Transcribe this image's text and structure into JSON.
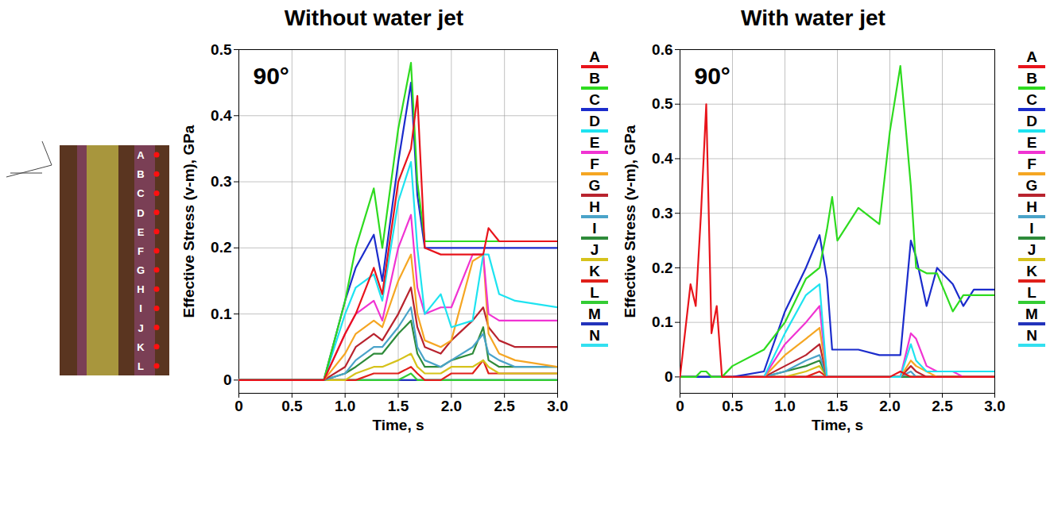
{
  "specimen": {
    "points": [
      "A",
      "B",
      "C",
      "D",
      "E",
      "F",
      "G",
      "H",
      "I",
      "J",
      "K",
      "L"
    ]
  },
  "chart_data": [
    {
      "type": "line",
      "title": "Without water jet",
      "annotation": "90°",
      "x_label": "Time, s",
      "y_label": "Effective Stress (v-m), GPa",
      "x": [
        0,
        0.8,
        1.0,
        1.1,
        1.27,
        1.35,
        1.5,
        1.62,
        1.68,
        1.75,
        1.9,
        2.0,
        2.2,
        2.3,
        2.35,
        2.45,
        2.6,
        3.0
      ],
      "xlim": [
        0,
        3
      ],
      "xticks": [
        0,
        0.5,
        {
          "value": 1,
          "label": "1.0"
        },
        1.5,
        {
          "value": 2,
          "label": "2.0"
        },
        2.5,
        {
          "value": 3,
          "label": "3.0"
        }
      ],
      "ylim": [
        -0.02,
        0.5
      ],
      "yticks": [
        0,
        0.1,
        0.2,
        0.3,
        0.4,
        0.5
      ],
      "grid": true,
      "legend": "right",
      "series": [
        {
          "name": "A",
          "color": "#e8141b",
          "values": [
            0,
            0,
            0.07,
            0.1,
            0.17,
            0.13,
            0.3,
            0.35,
            0.43,
            0.2,
            0.19,
            0.19,
            0.19,
            0.19,
            0.23,
            0.21,
            0.21,
            0.21
          ]
        },
        {
          "name": "B",
          "color": "#2edb1f",
          "values": [
            0,
            0,
            0.12,
            0.2,
            0.29,
            0.2,
            0.38,
            0.48,
            0.3,
            0.21,
            0.21,
            0.21,
            0.21,
            0.21,
            0.21,
            0.21,
            0.21,
            0.21
          ]
        },
        {
          "name": "C",
          "color": "#1b2ccc",
          "values": [
            0,
            0,
            0.12,
            0.17,
            0.22,
            0.15,
            0.33,
            0.45,
            0.28,
            0.2,
            0.2,
            0.2,
            0.2,
            0.2,
            0.2,
            0.2,
            0.2,
            0.2
          ]
        },
        {
          "name": "D",
          "color": "#1ee3f0",
          "values": [
            0,
            0,
            0.1,
            0.14,
            0.16,
            0.12,
            0.27,
            0.33,
            0.2,
            0.1,
            0.13,
            0.08,
            0.09,
            0.19,
            0.19,
            0.13,
            0.12,
            0.11
          ]
        },
        {
          "name": "E",
          "color": "#f033d2",
          "values": [
            0,
            0,
            0.07,
            0.1,
            0.12,
            0.09,
            0.2,
            0.25,
            0.14,
            0.1,
            0.11,
            0.11,
            0.19,
            0.19,
            0.1,
            0.09,
            0.09,
            0.09
          ]
        },
        {
          "name": "F",
          "color": "#f5a623",
          "values": [
            0,
            0,
            0.04,
            0.07,
            0.09,
            0.08,
            0.15,
            0.19,
            0.1,
            0.06,
            0.05,
            0.06,
            0.18,
            0.19,
            0.07,
            0.04,
            0.03,
            0.02
          ]
        },
        {
          "name": "G",
          "color": "#b8232e",
          "values": [
            0,
            0,
            0.02,
            0.05,
            0.07,
            0.06,
            0.1,
            0.14,
            0.08,
            0.05,
            0.04,
            0.06,
            0.09,
            0.11,
            0.08,
            0.06,
            0.05,
            0.05
          ]
        },
        {
          "name": "H",
          "color": "#4aa3c9",
          "values": [
            0,
            0,
            0.01,
            0.03,
            0.05,
            0.05,
            0.08,
            0.11,
            0.05,
            0.03,
            0.02,
            0.03,
            0.05,
            0.07,
            0.04,
            0.03,
            0.02,
            0.02
          ]
        },
        {
          "name": "I",
          "color": "#2e8b3a",
          "values": [
            0,
            0,
            0.01,
            0.02,
            0.04,
            0.04,
            0.07,
            0.09,
            0.04,
            0.02,
            0.02,
            0.03,
            0.04,
            0.08,
            0.03,
            0.02,
            0.02,
            0.02
          ]
        },
        {
          "name": "J",
          "color": "#d6c21b",
          "values": [
            0,
            0,
            0,
            0.01,
            0.02,
            0.02,
            0.03,
            0.04,
            0.02,
            0.01,
            0.01,
            0.02,
            0.02,
            0.03,
            0.02,
            0.01,
            0.01,
            0.01
          ]
        },
        {
          "name": "K",
          "color": "#e0201a",
          "values": [
            0,
            0,
            0,
            0,
            0.01,
            0.01,
            0.01,
            0.02,
            0.01,
            0,
            0,
            0.01,
            0.01,
            0.03,
            0.01,
            0.01,
            0.01,
            0.01
          ]
        },
        {
          "name": "L",
          "color": "#33cc33",
          "values": [
            0,
            0,
            0,
            0,
            0,
            0,
            0,
            0.01,
            0,
            0,
            0,
            0,
            0,
            0,
            0,
            0,
            0,
            0
          ]
        },
        {
          "name": "M",
          "color": "#2233bb",
          "values": [
            0,
            0,
            0,
            0,
            0,
            0,
            0,
            0,
            0,
            0,
            0,
            0,
            0,
            0,
            0,
            0,
            0,
            0
          ]
        },
        {
          "name": "N",
          "color": "#33e0f0",
          "values": [
            0,
            0,
            0,
            0,
            0,
            0,
            0,
            0,
            0,
            0,
            0,
            0,
            0,
            0,
            0,
            0,
            0,
            0
          ]
        }
      ]
    },
    {
      "type": "line",
      "title": "With water jet",
      "annotation": "90°",
      "x_label": "Time, s",
      "y_label": "Effective Stress (v-m), GPa",
      "x": [
        0,
        0.1,
        0.15,
        0.2,
        0.25,
        0.3,
        0.35,
        0.4,
        0.5,
        0.8,
        1.0,
        1.2,
        1.33,
        1.4,
        1.45,
        1.5,
        1.7,
        1.9,
        2.0,
        2.1,
        2.2,
        2.25,
        2.35,
        2.45,
        2.6,
        2.7,
        2.8,
        3.0
      ],
      "xlim": [
        0,
        3
      ],
      "xticks": [
        0,
        0.5,
        {
          "value": 1,
          "label": "1.0"
        },
        1.5,
        {
          "value": 2,
          "label": "2.0"
        },
        2.5,
        {
          "value": 3,
          "label": "3.0"
        }
      ],
      "ylim": [
        -0.03,
        0.6
      ],
      "yticks": [
        0,
        0.1,
        0.2,
        0.3,
        0.4,
        0.5,
        0.6
      ],
      "grid": true,
      "legend": "right",
      "series": [
        {
          "name": "A",
          "color": "#e8141b",
          "values": [
            0,
            0.17,
            0.13,
            0.3,
            0.5,
            0.08,
            0.13,
            0,
            0,
            0,
            0,
            0,
            0,
            0,
            0,
            0,
            0,
            0,
            0,
            0.01,
            0,
            0,
            0,
            0,
            0,
            0,
            0,
            0
          ]
        },
        {
          "name": "B",
          "color": "#2edb1f",
          "values": [
            0,
            0,
            0,
            0.01,
            0.01,
            0,
            0,
            0,
            0.02,
            0.05,
            0.1,
            0.18,
            0.2,
            0.27,
            0.33,
            0.25,
            0.31,
            0.28,
            0.45,
            0.57,
            0.35,
            0.2,
            0.19,
            0.19,
            0.12,
            0.15,
            0.15,
            0.15
          ]
        },
        {
          "name": "C",
          "color": "#1b2ccc",
          "values": [
            0,
            0,
            0,
            0,
            0,
            0,
            0,
            0,
            0,
            0.01,
            0.12,
            0.2,
            0.26,
            0.18,
            0.05,
            0.05,
            0.05,
            0.04,
            0.04,
            0.04,
            0.25,
            0.22,
            0.13,
            0.2,
            0.17,
            0.13,
            0.16,
            0.16
          ]
        },
        {
          "name": "D",
          "color": "#1ee3f0",
          "values": [
            0,
            0,
            0,
            0,
            0,
            0,
            0,
            0,
            0,
            0,
            0.08,
            0.15,
            0.17,
            0,
            0,
            0,
            0,
            0,
            0,
            0,
            0.06,
            0.03,
            0.01,
            0.01,
            0.01,
            0.01,
            0.01,
            0.01
          ]
        },
        {
          "name": "E",
          "color": "#f033d2",
          "values": [
            0,
            0,
            0,
            0,
            0,
            0,
            0,
            0,
            0,
            0,
            0.06,
            0.1,
            0.13,
            0,
            0,
            0,
            0,
            0,
            0,
            0,
            0.08,
            0.07,
            0.02,
            0.01,
            0.01,
            0,
            0,
            0
          ]
        },
        {
          "name": "F",
          "color": "#f5a623",
          "values": [
            0,
            0,
            0,
            0,
            0,
            0,
            0,
            0,
            0,
            0,
            0.04,
            0.07,
            0.09,
            0,
            0,
            0,
            0,
            0,
            0,
            0,
            0.03,
            0.02,
            0.01,
            0,
            0,
            0,
            0,
            0
          ]
        },
        {
          "name": "G",
          "color": "#b8232e",
          "values": [
            0,
            0,
            0,
            0,
            0,
            0,
            0,
            0,
            0,
            0,
            0.02,
            0.04,
            0.06,
            0,
            0,
            0,
            0,
            0,
            0,
            0,
            0.02,
            0.01,
            0,
            0,
            0,
            0,
            0,
            0
          ]
        },
        {
          "name": "H",
          "color": "#4aa3c9",
          "values": [
            0,
            0,
            0,
            0,
            0,
            0,
            0,
            0,
            0,
            0,
            0.01,
            0.03,
            0.04,
            0,
            0,
            0,
            0,
            0,
            0,
            0,
            0.01,
            0,
            0,
            0,
            0,
            0,
            0,
            0
          ]
        },
        {
          "name": "I",
          "color": "#2e8b3a",
          "values": [
            0,
            0,
            0,
            0,
            0,
            0,
            0,
            0,
            0,
            0,
            0.01,
            0.02,
            0.03,
            0,
            0,
            0,
            0,
            0,
            0,
            0,
            0,
            0,
            0,
            0,
            0,
            0,
            0,
            0
          ]
        },
        {
          "name": "J",
          "color": "#d6c21b",
          "values": [
            0,
            0,
            0,
            0,
            0,
            0,
            0,
            0,
            0,
            0,
            0,
            0.01,
            0.02,
            0,
            0,
            0,
            0,
            0,
            0,
            0,
            0,
            0,
            0,
            0,
            0,
            0,
            0,
            0
          ]
        },
        {
          "name": "K",
          "color": "#e0201a",
          "values": [
            0,
            0,
            0,
            0,
            0,
            0,
            0,
            0,
            0,
            0,
            0,
            0,
            0.01,
            0,
            0,
            0,
            0,
            0,
            0,
            0,
            0,
            0,
            0,
            0,
            0,
            0,
            0,
            0
          ]
        },
        {
          "name": "L",
          "color": "#33cc33",
          "values": [
            0,
            0,
            0,
            0,
            0,
            0,
            0,
            0,
            0,
            0,
            0,
            0,
            0,
            0,
            0,
            0,
            0,
            0,
            0,
            0,
            0,
            0,
            0,
            0,
            0,
            0,
            0,
            0
          ]
        },
        {
          "name": "M",
          "color": "#2233bb",
          "values": [
            0,
            0,
            0,
            0,
            0,
            0,
            0,
            0,
            0,
            0,
            0,
            0,
            0,
            0,
            0,
            0,
            0,
            0,
            0,
            0,
            0,
            0,
            0,
            0,
            0,
            0,
            0,
            0
          ]
        },
        {
          "name": "N",
          "color": "#33e0f0",
          "values": [
            0,
            0,
            0,
            0,
            0,
            0,
            0,
            0,
            0,
            0,
            0,
            0,
            0,
            0,
            0,
            0,
            0,
            0,
            0,
            0,
            0,
            0,
            0,
            0,
            0,
            0,
            0,
            0
          ]
        }
      ]
    }
  ]
}
